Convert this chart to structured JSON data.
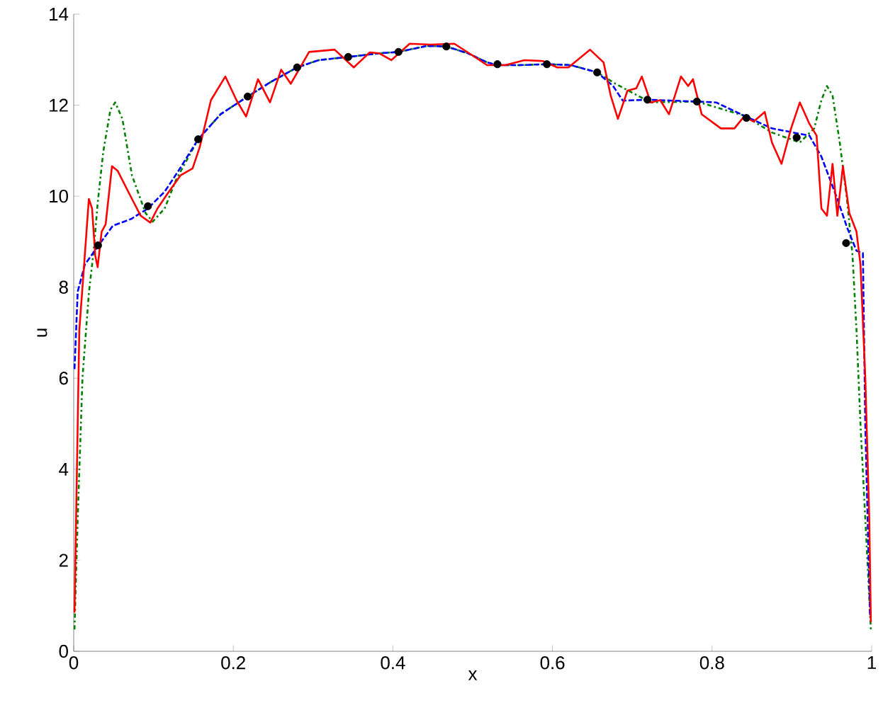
{
  "chart_data": {
    "type": "line",
    "xlabel": "x",
    "ylabel": "u",
    "xlim": [
      0,
      1
    ],
    "ylim": [
      0,
      14
    ],
    "xticks": [
      0,
      0.2,
      0.4,
      0.6,
      0.8,
      1
    ],
    "yticks": [
      0,
      2,
      4,
      6,
      8,
      10,
      12,
      14
    ],
    "grid": false,
    "series": [
      {
        "line_style": "dashdot",
        "marker": "none",
        "color": "#008000",
        "x": [
          0.001,
          0.005,
          0.011,
          0.019,
          0.025,
          0.03,
          0.037,
          0.046,
          0.052,
          0.061,
          0.073,
          0.09,
          0.099,
          0.114,
          0.128,
          0.156,
          0.184,
          0.218,
          0.248,
          0.28,
          0.307,
          0.344,
          0.383,
          0.407,
          0.442,
          0.467,
          0.494,
          0.518,
          0.531,
          0.559,
          0.593,
          0.623,
          0.656,
          0.679,
          0.723,
          0.781,
          0.84,
          0.875,
          0.91,
          0.928,
          0.937,
          0.944,
          0.951,
          0.96,
          0.969,
          0.976,
          0.981,
          0.986,
          0.992,
          0.999
        ],
        "values": [
          0.48,
          2.91,
          6.01,
          7.87,
          8.8,
          9.84,
          10.97,
          11.9,
          12.06,
          11.7,
          10.46,
          9.63,
          9.44,
          9.73,
          10.35,
          11.25,
          11.8,
          12.19,
          12.52,
          12.83,
          12.99,
          13.06,
          13.14,
          13.17,
          13.3,
          13.29,
          13.14,
          12.94,
          12.88,
          12.88,
          12.9,
          12.88,
          12.72,
          12.47,
          12.06,
          12.08,
          11.77,
          11.4,
          11.18,
          11.49,
          12.11,
          12.42,
          12.21,
          11.18,
          9.94,
          8.7,
          7.05,
          4.98,
          2.91,
          0.48
        ]
      },
      {
        "line_style": "dashed",
        "marker": "none",
        "color": "#0000ff",
        "x": [
          0.001,
          0.005,
          0.014,
          0.0305,
          0.049,
          0.072,
          0.093,
          0.114,
          0.131,
          0.156,
          0.184,
          0.218,
          0.248,
          0.28,
          0.307,
          0.344,
          0.383,
          0.407,
          0.442,
          0.467,
          0.494,
          0.518,
          0.531,
          0.559,
          0.593,
          0.623,
          0.656,
          0.676,
          0.688,
          0.719,
          0.781,
          0.805,
          0.84,
          0.875,
          0.922,
          0.937,
          0.957,
          0.969,
          0.981,
          0.989,
          0.992,
          0.998
        ],
        "values": [
          6.2,
          7.9,
          8.5,
          8.9,
          9.35,
          9.5,
          9.73,
          10.1,
          10.55,
          11.25,
          11.8,
          12.19,
          12.52,
          12.83,
          12.99,
          13.06,
          13.14,
          13.17,
          13.3,
          13.29,
          13.14,
          12.94,
          12.88,
          12.88,
          12.9,
          12.88,
          12.72,
          12.42,
          12.1,
          12.12,
          12.08,
          12.06,
          11.77,
          11.49,
          11.33,
          10.87,
          9.94,
          9.32,
          8.8,
          8.75,
          4.98,
          0.74
        ]
      },
      {
        "line_style": "solid",
        "marker": "none",
        "color": "#ff0000",
        "x": [
          0.001,
          0.004,
          0.007,
          0.013,
          0.019,
          0.023,
          0.027,
          0.03,
          0.035,
          0.04,
          0.048,
          0.055,
          0.073,
          0.084,
          0.096,
          0.105,
          0.117,
          0.134,
          0.149,
          0.158,
          0.172,
          0.19,
          0.204,
          0.216,
          0.231,
          0.246,
          0.26,
          0.272,
          0.295,
          0.327,
          0.351,
          0.371,
          0.383,
          0.398,
          0.421,
          0.447,
          0.477,
          0.5,
          0.518,
          0.541,
          0.565,
          0.588,
          0.606,
          0.62,
          0.647,
          0.664,
          0.673,
          0.682,
          0.694,
          0.705,
          0.712,
          0.723,
          0.735,
          0.746,
          0.761,
          0.77,
          0.776,
          0.787,
          0.811,
          0.828,
          0.84,
          0.852,
          0.866,
          0.875,
          0.887,
          0.899,
          0.91,
          0.922,
          0.931,
          0.937,
          0.944,
          0.951,
          0.957,
          0.964,
          0.972,
          0.981,
          0.986,
          0.992,
          0.997,
          0.999
        ],
        "values": [
          0.85,
          3.95,
          7.05,
          8.48,
          9.94,
          9.73,
          8.7,
          8.44,
          9.22,
          9.38,
          10.66,
          10.56,
          9.94,
          9.57,
          9.42,
          9.73,
          10.04,
          10.46,
          10.61,
          11.08,
          12.11,
          12.63,
          12.11,
          11.75,
          12.57,
          12.06,
          12.78,
          12.47,
          13.17,
          13.22,
          12.83,
          13.16,
          13.14,
          12.99,
          13.35,
          13.33,
          13.35,
          13.09,
          12.88,
          12.88,
          12.99,
          12.97,
          12.83,
          12.83,
          13.22,
          12.94,
          12.21,
          11.7,
          12.32,
          12.37,
          12.63,
          12.06,
          12.11,
          11.8,
          12.63,
          12.42,
          12.57,
          11.8,
          11.49,
          11.49,
          11.75,
          11.64,
          11.85,
          11.18,
          10.71,
          11.49,
          12.06,
          11.59,
          11.33,
          9.73,
          9.57,
          10.71,
          9.57,
          10.66,
          9.63,
          9.22,
          8.49,
          6.01,
          2.91,
          0.64
        ]
      },
      {
        "type": "scatter",
        "marker": "circle",
        "color": "#000000",
        "x": [
          0.0305,
          0.093,
          0.156,
          0.218,
          0.28,
          0.344,
          0.407,
          0.467,
          0.531,
          0.593,
          0.656,
          0.719,
          0.781,
          0.843,
          0.906,
          0.968
        ],
        "values": [
          8.92,
          9.78,
          11.25,
          12.19,
          12.83,
          13.06,
          13.17,
          13.29,
          12.9,
          12.9,
          12.72,
          12.12,
          12.08,
          11.72,
          11.29,
          8.97
        ]
      }
    ]
  }
}
